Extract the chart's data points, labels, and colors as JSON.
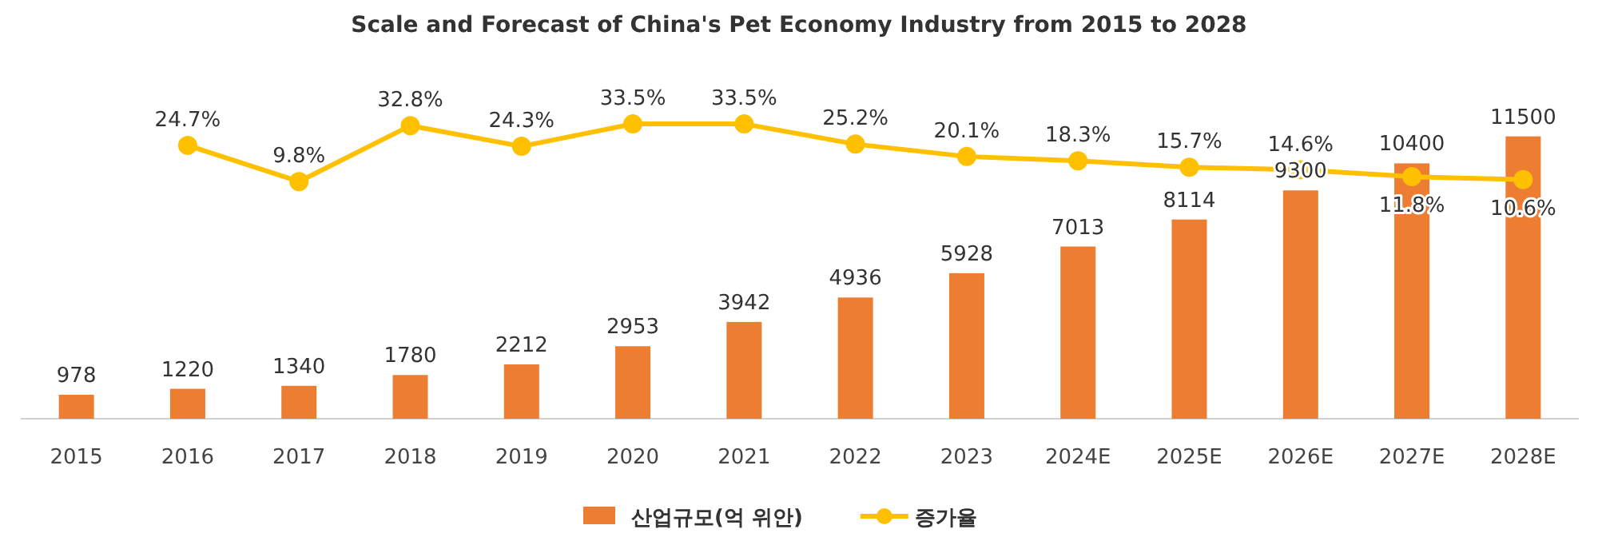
{
  "chart_data": {
    "type": "bar",
    "title": "Scale and Forecast of China's Pet Economy Industry from 2015 to 2028",
    "categories": [
      "2015",
      "2016",
      "2017",
      "2018",
      "2019",
      "2020",
      "2021",
      "2022",
      "2023",
      "2024E",
      "2025E",
      "2026E",
      "2027E",
      "2028E"
    ],
    "series": [
      {
        "name": "산업규모(억 위안)",
        "type": "bar",
        "color": "#ed7d31",
        "values": [
          978,
          1220,
          1340,
          1780,
          2212,
          2953,
          3942,
          4936,
          5928,
          7013,
          8114,
          9300,
          10400,
          11500
        ],
        "value_labels": [
          "978",
          "1220",
          "1340",
          "1780",
          "2212",
          "2953",
          "3942",
          "4936",
          "5928",
          "7013",
          "8114",
          "9300",
          "10400",
          "11500"
        ]
      },
      {
        "name": "증가율",
        "type": "line",
        "axis": "y2",
        "color": "#ffc000",
        "marker": "circle",
        "values": [
          null,
          24.7,
          9.8,
          32.8,
          24.3,
          33.5,
          33.5,
          25.2,
          20.1,
          18.3,
          15.7,
          14.6,
          11.8,
          10.6
        ],
        "value_labels": [
          null,
          "24.7%",
          "9.8%",
          "32.8%",
          "24.3%",
          "33.5%",
          "33.5%",
          "25.2%",
          "20.1%",
          "18.3%",
          "15.7%",
          "14.6%",
          "11.8%",
          "10.6%"
        ]
      }
    ],
    "legend": "bottom"
  }
}
